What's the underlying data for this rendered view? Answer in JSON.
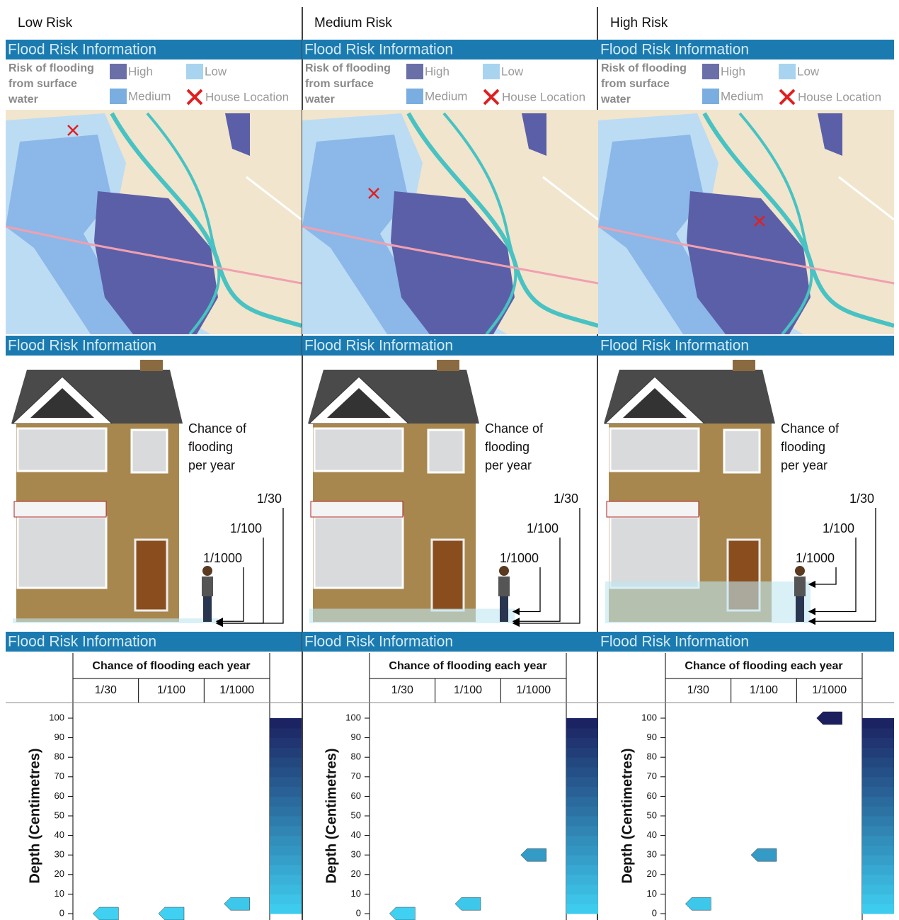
{
  "panels": [
    {
      "title": "Low Risk",
      "map_header": "Flood Risk Information",
      "legend_title": [
        "Risk of flooding",
        "from surface",
        "water"
      ],
      "legend": [
        "High",
        "Medium",
        "Low",
        "House Location"
      ],
      "house_header": "Flood Risk Information",
      "house_caption": [
        "Chance of",
        "flooding",
        "per year"
      ]
    },
    {
      "title": "Medium Risk",
      "map_header": "Flood Risk Information",
      "legend_title": [
        "Risk of flooding",
        "from surface",
        "water"
      ],
      "legend": [
        "High",
        "Medium",
        "Low",
        "House Location"
      ],
      "house_header": "Flood Risk Information",
      "house_caption": [
        "Chance of",
        "flooding",
        "per year"
      ]
    },
    {
      "title": "High Risk",
      "map_header": "Flood Risk Information",
      "legend_title": [
        "Risk of flooding",
        "from surface",
        "water"
      ],
      "legend": [
        "High",
        "Medium",
        "Low",
        "House Location"
      ],
      "house_header": "Flood Risk Information",
      "house_caption": [
        "Chance of",
        "flooding",
        "per year"
      ]
    }
  ],
  "chart_data": [
    {
      "type": "marker",
      "header": "Flood Risk Information",
      "column_header": "Chance of flooding each year",
      "y_label": "Depth (Centimetres)",
      "categories": [
        "1/30",
        "1/100",
        "1/1000"
      ],
      "values": [
        0,
        0,
        5
      ],
      "ylim": [
        0,
        100
      ],
      "yticks": [
        0,
        10,
        20,
        30,
        40,
        50,
        60,
        70,
        80,
        90,
        100
      ],
      "color_scale": [
        "#3fd0f2",
        "#1b1f5e"
      ]
    },
    {
      "type": "marker",
      "header": "Flood Risk Information",
      "column_header": "Chance of flooding each year",
      "y_label": "Depth (Centimetres)",
      "categories": [
        "1/30",
        "1/100",
        "1/1000"
      ],
      "values": [
        0,
        5,
        30
      ],
      "ylim": [
        0,
        100
      ],
      "yticks": [
        0,
        10,
        20,
        30,
        40,
        50,
        60,
        70,
        80,
        90,
        100
      ],
      "color_scale": [
        "#3fd0f2",
        "#1b1f5e"
      ]
    },
    {
      "type": "marker",
      "header": "Flood Risk Information",
      "column_header": "Chance of flooding each year",
      "y_label": "Depth (Centimetres)",
      "categories": [
        "1/30",
        "1/100",
        "1/1000"
      ],
      "values": [
        5,
        30,
        100
      ],
      "ylim": [
        0,
        100
      ],
      "yticks": [
        0,
        10,
        20,
        30,
        40,
        50,
        60,
        70,
        80,
        90,
        100
      ],
      "color_scale": [
        "#3fd0f2",
        "#1b1f5e"
      ]
    }
  ]
}
